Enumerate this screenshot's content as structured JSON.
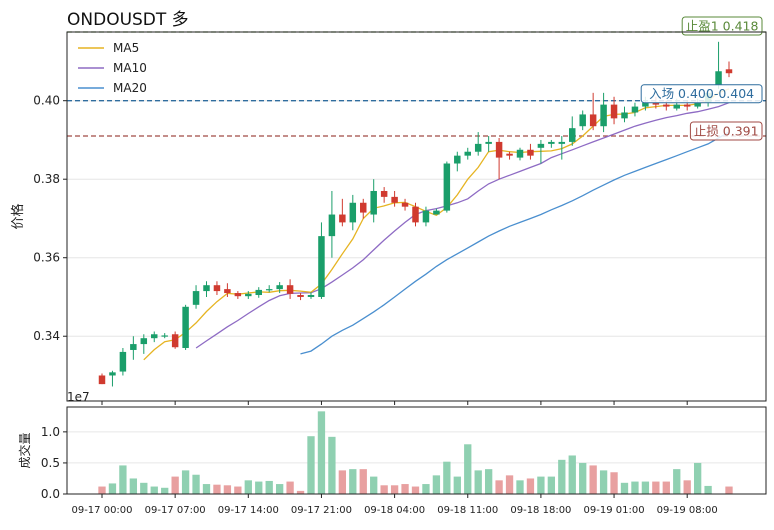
{
  "title": "ONDOUSDT  多",
  "colors": {
    "up": "#1a9e6a",
    "down": "#d03a2f",
    "up_vol": "#8fd0b1",
    "down_vol": "#e8a0a0",
    "ma5": "#e6b422",
    "ma10": "#8e6bc4",
    "ma20": "#4a8fcf",
    "tp": "#5a8a3a",
    "entry": "#2f6d9e",
    "sl": "#a04a44"
  },
  "chart_data": [
    {
      "type": "candlestick",
      "ylabel": "价格",
      "ylim": [
        0.3235,
        0.4175
      ],
      "yticks": [
        0.34,
        0.36,
        0.38,
        0.4
      ],
      "ytick_labels": [
        "0.34",
        "0.36",
        "0.38",
        "0.40"
      ],
      "offset_label": "1e7",
      "legend": {
        "placement": "top-left",
        "entries": [
          {
            "label": "MA5",
            "color_key": "ma5"
          },
          {
            "label": "MA10",
            "color_key": "ma10"
          },
          {
            "label": "MA20",
            "color_key": "ma20"
          }
        ]
      },
      "hlines": [
        {
          "label": "止盈1 0.418",
          "value": 0.4175,
          "color_key": "tp"
        },
        {
          "label": "入场 0.400-0.404",
          "value": 0.4,
          "color_key": "entry"
        },
        {
          "label": "止损 0.391",
          "value": 0.391,
          "color_key": "sl"
        }
      ],
      "candles": [
        [
          0.33,
          0.3278,
          0.3278,
          0.3305
        ],
        [
          0.33,
          0.3308,
          0.3272,
          0.3312
        ],
        [
          0.331,
          0.336,
          0.33,
          0.337
        ],
        [
          0.3365,
          0.338,
          0.334,
          0.34
        ],
        [
          0.338,
          0.3395,
          0.3355,
          0.3405
        ],
        [
          0.3395,
          0.3405,
          0.3385,
          0.3412
        ],
        [
          0.3402,
          0.3402,
          0.3395,
          0.3408
        ],
        [
          0.3405,
          0.3372,
          0.3368,
          0.3412
        ],
        [
          0.337,
          0.3475,
          0.3365,
          0.348
        ],
        [
          0.348,
          0.3515,
          0.347,
          0.353
        ],
        [
          0.3515,
          0.353,
          0.35,
          0.354
        ],
        [
          0.353,
          0.3515,
          0.3505,
          0.354
        ],
        [
          0.352,
          0.351,
          0.35,
          0.3535
        ],
        [
          0.351,
          0.3502,
          0.3495,
          0.3515
        ],
        [
          0.3502,
          0.3508,
          0.3495,
          0.3515
        ],
        [
          0.3505,
          0.3518,
          0.3498,
          0.3525
        ],
        [
          0.3518,
          0.352,
          0.3512,
          0.353
        ],
        [
          0.352,
          0.353,
          0.351,
          0.3538
        ],
        [
          0.353,
          0.3508,
          0.3495,
          0.3545
        ],
        [
          0.3505,
          0.35,
          0.3492,
          0.351
        ],
        [
          0.35,
          0.3505,
          0.3495,
          0.3512
        ],
        [
          0.35,
          0.3655,
          0.3495,
          0.369
        ],
        [
          0.3655,
          0.371,
          0.36,
          0.377
        ],
        [
          0.371,
          0.369,
          0.368,
          0.375
        ],
        [
          0.369,
          0.374,
          0.367,
          0.376
        ],
        [
          0.374,
          0.3715,
          0.37,
          0.375
        ],
        [
          0.371,
          0.377,
          0.369,
          0.38
        ],
        [
          0.377,
          0.3755,
          0.374,
          0.378
        ],
        [
          0.3755,
          0.374,
          0.373,
          0.377
        ],
        [
          0.374,
          0.373,
          0.372,
          0.375
        ],
        [
          0.373,
          0.369,
          0.368,
          0.374
        ],
        [
          0.369,
          0.372,
          0.368,
          0.373
        ],
        [
          0.371,
          0.372,
          0.371,
          0.3725
        ],
        [
          0.372,
          0.384,
          0.3715,
          0.3845
        ],
        [
          0.384,
          0.386,
          0.382,
          0.387
        ],
        [
          0.386,
          0.387,
          0.385,
          0.388
        ],
        [
          0.387,
          0.389,
          0.386,
          0.392
        ],
        [
          0.389,
          0.3895,
          0.387,
          0.391
        ],
        [
          0.3895,
          0.3855,
          0.38,
          0.3905
        ],
        [
          0.3865,
          0.386,
          0.385,
          0.387
        ],
        [
          0.3855,
          0.3875,
          0.3848,
          0.388
        ],
        [
          0.3875,
          0.386,
          0.385,
          0.389
        ],
        [
          0.388,
          0.389,
          0.384,
          0.39
        ],
        [
          0.389,
          0.3895,
          0.388,
          0.39
        ],
        [
          0.389,
          0.3895,
          0.385,
          0.391
        ],
        [
          0.3895,
          0.393,
          0.3885,
          0.396
        ],
        [
          0.3935,
          0.3965,
          0.3925,
          0.3975
        ],
        [
          0.3965,
          0.3935,
          0.3925,
          0.402
        ],
        [
          0.3935,
          0.399,
          0.392,
          0.402
        ],
        [
          0.399,
          0.3955,
          0.394,
          0.401
        ],
        [
          0.3955,
          0.397,
          0.3945,
          0.3985
        ],
        [
          0.397,
          0.3985,
          0.396,
          0.3995
        ],
        [
          0.3985,
          0.3995,
          0.3975,
          0.401
        ],
        [
          0.3995,
          0.399,
          0.398,
          0.401
        ],
        [
          0.399,
          0.3985,
          0.3975,
          0.4
        ],
        [
          0.398,
          0.399,
          0.3975,
          0.4005
        ],
        [
          0.399,
          0.3985,
          0.3975,
          0.4
        ],
        [
          0.3985,
          0.3995,
          0.398,
          0.4005
        ],
        [
          0.3995,
          0.402,
          0.3985,
          0.403
        ],
        [
          0.404,
          0.4075,
          0.403,
          0.415
        ],
        [
          0.408,
          0.407,
          0.406,
          0.41
        ]
      ],
      "ma5": [
        null,
        null,
        null,
        null,
        0.334,
        0.3366,
        0.3386,
        0.3391,
        0.341,
        0.3434,
        0.3463,
        0.3488,
        0.3509,
        0.3507,
        0.351,
        0.3513,
        0.3512,
        0.3516,
        0.3517,
        0.3515,
        0.3512,
        0.3533,
        0.357,
        0.361,
        0.3648,
        0.37,
        0.3726,
        0.3732,
        0.374,
        0.3741,
        0.373,
        0.3718,
        0.3708,
        0.3728,
        0.376,
        0.38,
        0.383,
        0.387,
        0.3874,
        0.387,
        0.3868,
        0.387,
        0.3871,
        0.3872,
        0.3878,
        0.389,
        0.391,
        0.3935,
        0.396,
        0.3965,
        0.3966,
        0.397,
        0.3982,
        0.3985,
        0.3988,
        0.3988,
        0.3988,
        0.3992,
        0.4,
        0.402,
        0.403
      ],
      "ma10": [
        null,
        null,
        null,
        null,
        null,
        null,
        null,
        null,
        null,
        0.337,
        0.3388,
        0.3406,
        0.3424,
        0.344,
        0.3458,
        0.3475,
        0.3491,
        0.3503,
        0.3509,
        0.351,
        0.3511,
        0.3521,
        0.3538,
        0.3556,
        0.3574,
        0.3595,
        0.362,
        0.3645,
        0.3668,
        0.369,
        0.371,
        0.372,
        0.3725,
        0.3732,
        0.374,
        0.375,
        0.377,
        0.3788,
        0.38,
        0.381,
        0.382,
        0.383,
        0.384,
        0.3855,
        0.3865,
        0.3875,
        0.3885,
        0.3895,
        0.3905,
        0.3915,
        0.3925,
        0.3935,
        0.3943,
        0.395,
        0.3957,
        0.3962,
        0.3968,
        0.3972,
        0.3978,
        0.3985,
        0.3995
      ],
      "ma20": [
        null,
        null,
        null,
        null,
        null,
        null,
        null,
        null,
        null,
        null,
        null,
        null,
        null,
        null,
        null,
        null,
        null,
        null,
        null,
        0.3355,
        0.3362,
        0.338,
        0.34,
        0.3415,
        0.3428,
        0.3445,
        0.3462,
        0.348,
        0.35,
        0.352,
        0.354,
        0.3558,
        0.3578,
        0.3595,
        0.361,
        0.3625,
        0.364,
        0.3655,
        0.3668,
        0.368,
        0.369,
        0.37,
        0.371,
        0.3722,
        0.3733,
        0.3745,
        0.3758,
        0.3772,
        0.3785,
        0.3798,
        0.381,
        0.382,
        0.383,
        0.384,
        0.385,
        0.386,
        0.387,
        0.388,
        0.389,
        0.3905,
        0.392
      ]
    },
    {
      "type": "bar",
      "ylabel": "成交量",
      "ylim": [
        0,
        1.4
      ],
      "yticks": [
        0.0,
        0.5,
        1.0
      ],
      "ytick_labels": [
        "0.0",
        "0.5",
        "1.0"
      ],
      "xtick_labels": [
        "09-17 00:00",
        "09-17 07:00",
        "09-17 14:00",
        "09-17 21:00",
        "09-18 04:00",
        "09-18 11:00",
        "09-18 18:00",
        "09-19 01:00",
        "09-19 08:00"
      ],
      "xtick_indices": [
        0,
        7,
        14,
        21,
        28,
        35,
        42,
        49,
        56
      ],
      "volumes": [
        0.12,
        0.17,
        0.46,
        0.25,
        0.18,
        0.12,
        0.1,
        0.28,
        0.38,
        0.31,
        0.16,
        0.15,
        0.14,
        0.12,
        0.22,
        0.2,
        0.21,
        0.16,
        0.2,
        0.05,
        0.93,
        1.33,
        0.92,
        0.38,
        0.4,
        0.4,
        0.28,
        0.14,
        0.14,
        0.16,
        0.12,
        0.16,
        0.3,
        0.52,
        0.28,
        0.8,
        0.38,
        0.4,
        0.22,
        0.3,
        0.22,
        0.25,
        0.28,
        0.28,
        0.55,
        0.62,
        0.5,
        0.46,
        0.38,
        0.35,
        0.18,
        0.2,
        0.2,
        0.2,
        0.2,
        0.4,
        0.22,
        0.5,
        0.13,
        0.0,
        0.12
      ]
    }
  ]
}
